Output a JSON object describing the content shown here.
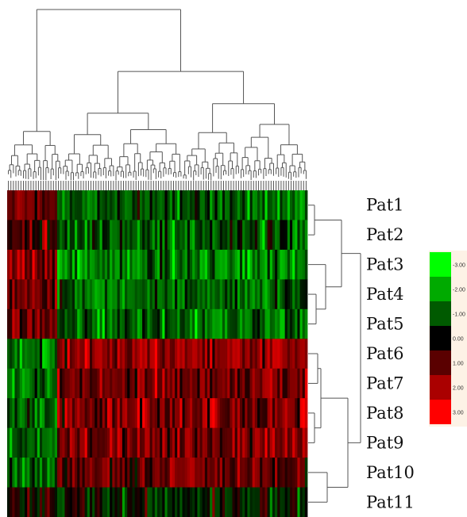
{
  "chart_data": {
    "type": "heatmap",
    "title": "",
    "rows": [
      "Pat1",
      "Pat2",
      "Pat3",
      "Pat4",
      "Pat5",
      "Pat6",
      "Pat7",
      "Pat8",
      "Pat9",
      "Pat10",
      "Pat11"
    ],
    "row_mean_expression": [
      -1.1,
      -1.0,
      -1.6,
      -1.2,
      -1.3,
      1.6,
      1.4,
      1.5,
      1.3,
      1.2,
      -0.3
    ],
    "n_columns": 120,
    "color_scale": {
      "min": -3,
      "max": 3,
      "low_color": "#00ff00",
      "mid_color": "#000000",
      "high_color": "#ff0000"
    },
    "legend": {
      "position": "right",
      "labels": [
        "3.00",
        "2.00",
        "1.00",
        "0.00",
        "1.00",
        "2.00",
        "3.00"
      ],
      "label_marks": [
        "-",
        "-",
        "-",
        "",
        "",
        "",
        ""
      ],
      "colors": [
        "#00ff00",
        "#00aa00",
        "#005a00",
        "#000000",
        "#5a0000",
        "#aa0000",
        "#ff0000"
      ]
    },
    "row_dendrogram": true,
    "column_dendrogram": true,
    "grid": false
  }
}
